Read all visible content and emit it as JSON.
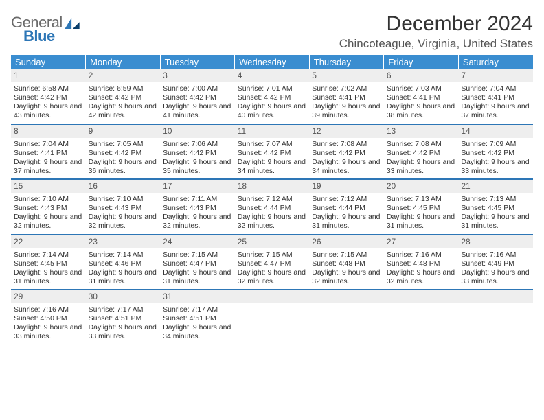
{
  "logo": {
    "line1": "General",
    "line2": "Blue"
  },
  "title": "December 2024",
  "location": "Chincoteague, Virginia, United States",
  "colors": {
    "header_bg": "#3a8dd0",
    "header_text": "#ffffff",
    "rule": "#2d76b6",
    "daynum_bg": "#eeeeee",
    "logo_gray": "#6a6a6a",
    "logo_blue": "#2d76b6"
  },
  "columns": [
    "Sunday",
    "Monday",
    "Tuesday",
    "Wednesday",
    "Thursday",
    "Friday",
    "Saturday"
  ],
  "weeks": [
    [
      {
        "n": "1",
        "sr": "6:58 AM",
        "ss": "4:42 PM",
        "dl": "9 hours and 43 minutes."
      },
      {
        "n": "2",
        "sr": "6:59 AM",
        "ss": "4:42 PM",
        "dl": "9 hours and 42 minutes."
      },
      {
        "n": "3",
        "sr": "7:00 AM",
        "ss": "4:42 PM",
        "dl": "9 hours and 41 minutes."
      },
      {
        "n": "4",
        "sr": "7:01 AM",
        "ss": "4:42 PM",
        "dl": "9 hours and 40 minutes."
      },
      {
        "n": "5",
        "sr": "7:02 AM",
        "ss": "4:41 PM",
        "dl": "9 hours and 39 minutes."
      },
      {
        "n": "6",
        "sr": "7:03 AM",
        "ss": "4:41 PM",
        "dl": "9 hours and 38 minutes."
      },
      {
        "n": "7",
        "sr": "7:04 AM",
        "ss": "4:41 PM",
        "dl": "9 hours and 37 minutes."
      }
    ],
    [
      {
        "n": "8",
        "sr": "7:04 AM",
        "ss": "4:41 PM",
        "dl": "9 hours and 37 minutes."
      },
      {
        "n": "9",
        "sr": "7:05 AM",
        "ss": "4:42 PM",
        "dl": "9 hours and 36 minutes."
      },
      {
        "n": "10",
        "sr": "7:06 AM",
        "ss": "4:42 PM",
        "dl": "9 hours and 35 minutes."
      },
      {
        "n": "11",
        "sr": "7:07 AM",
        "ss": "4:42 PM",
        "dl": "9 hours and 34 minutes."
      },
      {
        "n": "12",
        "sr": "7:08 AM",
        "ss": "4:42 PM",
        "dl": "9 hours and 34 minutes."
      },
      {
        "n": "13",
        "sr": "7:08 AM",
        "ss": "4:42 PM",
        "dl": "9 hours and 33 minutes."
      },
      {
        "n": "14",
        "sr": "7:09 AM",
        "ss": "4:42 PM",
        "dl": "9 hours and 33 minutes."
      }
    ],
    [
      {
        "n": "15",
        "sr": "7:10 AM",
        "ss": "4:43 PM",
        "dl": "9 hours and 32 minutes."
      },
      {
        "n": "16",
        "sr": "7:10 AM",
        "ss": "4:43 PM",
        "dl": "9 hours and 32 minutes."
      },
      {
        "n": "17",
        "sr": "7:11 AM",
        "ss": "4:43 PM",
        "dl": "9 hours and 32 minutes."
      },
      {
        "n": "18",
        "sr": "7:12 AM",
        "ss": "4:44 PM",
        "dl": "9 hours and 32 minutes."
      },
      {
        "n": "19",
        "sr": "7:12 AM",
        "ss": "4:44 PM",
        "dl": "9 hours and 31 minutes."
      },
      {
        "n": "20",
        "sr": "7:13 AM",
        "ss": "4:45 PM",
        "dl": "9 hours and 31 minutes."
      },
      {
        "n": "21",
        "sr": "7:13 AM",
        "ss": "4:45 PM",
        "dl": "9 hours and 31 minutes."
      }
    ],
    [
      {
        "n": "22",
        "sr": "7:14 AM",
        "ss": "4:45 PM",
        "dl": "9 hours and 31 minutes."
      },
      {
        "n": "23",
        "sr": "7:14 AM",
        "ss": "4:46 PM",
        "dl": "9 hours and 31 minutes."
      },
      {
        "n": "24",
        "sr": "7:15 AM",
        "ss": "4:47 PM",
        "dl": "9 hours and 31 minutes."
      },
      {
        "n": "25",
        "sr": "7:15 AM",
        "ss": "4:47 PM",
        "dl": "9 hours and 32 minutes."
      },
      {
        "n": "26",
        "sr": "7:15 AM",
        "ss": "4:48 PM",
        "dl": "9 hours and 32 minutes."
      },
      {
        "n": "27",
        "sr": "7:16 AM",
        "ss": "4:48 PM",
        "dl": "9 hours and 32 minutes."
      },
      {
        "n": "28",
        "sr": "7:16 AM",
        "ss": "4:49 PM",
        "dl": "9 hours and 33 minutes."
      }
    ],
    [
      {
        "n": "29",
        "sr": "7:16 AM",
        "ss": "4:50 PM",
        "dl": "9 hours and 33 minutes."
      },
      {
        "n": "30",
        "sr": "7:17 AM",
        "ss": "4:51 PM",
        "dl": "9 hours and 33 minutes."
      },
      {
        "n": "31",
        "sr": "7:17 AM",
        "ss": "4:51 PM",
        "dl": "9 hours and 34 minutes."
      },
      null,
      null,
      null,
      null
    ]
  ],
  "labels": {
    "sunrise": "Sunrise:",
    "sunset": "Sunset:",
    "daylight": "Daylight:"
  }
}
